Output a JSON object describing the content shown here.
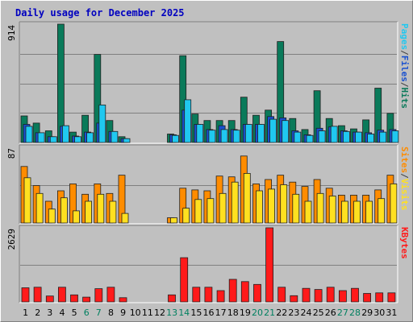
{
  "chart_data": {
    "type": "bar",
    "title": "Daily usage for December 2025",
    "categories": [
      "1",
      "2",
      "3",
      "4",
      "5",
      "6",
      "7",
      "8",
      "9",
      "10",
      "11",
      "12",
      "13",
      "14",
      "15",
      "16",
      "17",
      "18",
      "19",
      "20",
      "21",
      "22",
      "23",
      "24",
      "25",
      "26",
      "27",
      "28",
      "29",
      "30",
      "31"
    ],
    "weekend_days": [
      "6",
      "7",
      "13",
      "14",
      "20",
      "21",
      "27",
      "28"
    ],
    "panels": [
      {
        "ymax_label": "914",
        "ymax": 914,
        "legend": [
          "Pages",
          "/",
          "Files",
          "/",
          "Hits"
        ],
        "series": [
          {
            "name": "Hits",
            "color": "#0a7a5a",
            "values": [
              205,
              150,
              90,
              914,
              80,
              210,
              680,
              170,
              45,
              0,
              0,
              0,
              65,
              670,
              220,
              170,
              170,
              170,
              350,
              210,
              250,
              780,
              185,
              100,
              400,
              185,
              130,
              105,
              175,
              420,
              225
            ]
          },
          {
            "name": "Files",
            "color": "#1850d0",
            "values": [
              140,
              75,
              45,
              125,
              50,
              80,
              150,
              85,
              30,
              0,
              0,
              0,
              60,
              250,
              140,
              100,
              130,
              100,
              140,
              140,
              200,
              190,
              90,
              60,
              110,
              120,
              90,
              80,
              75,
              95,
              100
            ]
          },
          {
            "name": "Pages",
            "color": "#20c8f0",
            "values": [
              125,
              75,
              45,
              130,
              45,
              75,
              290,
              85,
              30,
              0,
              0,
              0,
              55,
              330,
              140,
              95,
              100,
              95,
              140,
              140,
              180,
              170,
              80,
              55,
              90,
              125,
              85,
              80,
              65,
              80,
              90
            ]
          }
        ]
      },
      {
        "ymax_label": "87",
        "ymax": 87,
        "legend": [
          "Sites",
          "/",
          "Visits"
        ],
        "series": [
          {
            "name": "Visits",
            "color": "#ff8c00",
            "values": [
              65,
              43,
              25,
              37,
              45,
              33,
              45,
              34,
              55,
              0,
              0,
              0,
              6,
              40,
              38,
              37,
              54,
              53,
              77,
              45,
              50,
              55,
              47,
              42,
              50,
              40,
              32,
              32,
              32,
              38,
              55
            ]
          },
          {
            "name": "Sites",
            "color": "#ffe020",
            "values": [
              52,
              34,
              16,
              29,
              14,
              25,
              33,
              25,
              11,
              0,
              0,
              0,
              6,
              17,
              27,
              28,
              34,
              47,
              57,
              37,
              39,
              44,
              33,
              25,
              34,
              31,
              25,
              25,
              25,
              28,
              45
            ]
          }
        ]
      },
      {
        "ymax_label": "2629",
        "ymax": 2629,
        "legend": [
          "KBytes"
        ],
        "series": [
          {
            "name": "KBytes",
            "color": "#ff1a1a",
            "values": [
              500,
              520,
              210,
              520,
              250,
              170,
              470,
              520,
              150,
              0,
              0,
              0,
              250,
              1570,
              520,
              520,
              400,
              800,
              720,
              620,
              2629,
              520,
              220,
              480,
              440,
              520,
              400,
              480,
              300,
              320,
              320
            ]
          }
        ]
      }
    ]
  }
}
